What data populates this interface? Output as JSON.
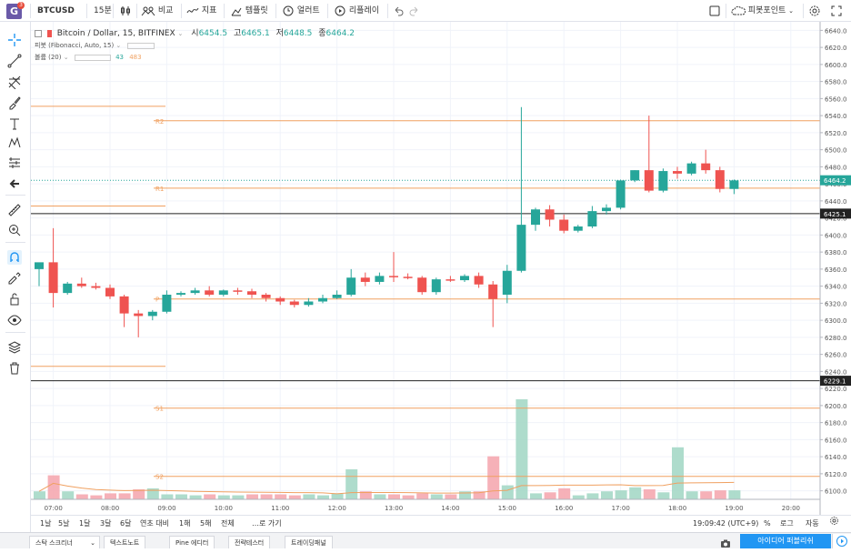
{
  "topbar": {
    "logo_letter": "G",
    "logo_badge": "3",
    "symbol": "BTCUSD",
    "interval": "15분",
    "compare_label": "비교",
    "indicators_label": "지표",
    "templates_label": "템플릿",
    "alert_label": "얼러트",
    "replay_label": "리플레이",
    "pivot_label": "피봇포인트"
  },
  "legend": {
    "title": "Bitcoin / Dollar, 15, BITFINEX",
    "open_label": "시",
    "open": "6454.5",
    "high_label": "고",
    "high": "6465.1",
    "low_label": "저",
    "low": "6448.5",
    "close_label": "종",
    "close": "6464.2",
    "pivot_indicator": "피봇 (Fibonacci, Auto, 15)",
    "volume_indicator": "볼륨 (20)",
    "volume_value_1": "43",
    "volume_value_2": "483"
  },
  "price_axis": {
    "ticks": [
      "6640.0",
      "6620.0",
      "6600.0",
      "6580.0",
      "6560.0",
      "6540.0",
      "6520.0",
      "6500.0",
      "6480.0",
      "6460.0",
      "6440.0",
      "6420.0",
      "6400.0",
      "6380.0",
      "6360.0",
      "6340.0",
      "6320.0",
      "6300.0",
      "6280.0",
      "6260.0",
      "6240.0",
      "6220.0",
      "6200.0",
      "6180.0",
      "6160.0",
      "6140.0",
      "6120.0",
      "6100.0"
    ],
    "current_price": "6464.2",
    "line_price_1": "6425.1",
    "line_price_2": "6229.1"
  },
  "time_axis": {
    "ticks": [
      "07:00",
      "08:00",
      "09:00",
      "10:00",
      "11:00",
      "12:00",
      "13:00",
      "14:00",
      "15:00",
      "16:00",
      "17:00",
      "18:00",
      "19:00",
      "20:00"
    ]
  },
  "pivots": {
    "r2": "R2",
    "r1": "R1",
    "p": "P",
    "s1": "S1",
    "s2": "S2"
  },
  "bottombar": {
    "ranges": [
      "1날",
      "5날",
      "1달",
      "3달",
      "6달",
      "연초 대비",
      "1해",
      "5해",
      "전체"
    ],
    "goto_label": "…로 가기",
    "clock": "19:09:42 (UTC+9)",
    "percent_label": "%",
    "log_label": "로그",
    "auto_label": "자동"
  },
  "panels": {
    "tabs": [
      "스탁 스크리너",
      "텍스트노트",
      "Pine 에디터",
      "전략테스터",
      "트레이딩패널"
    ],
    "publish_label": "아이디어 퍼블리쉬"
  },
  "colors": {
    "up": "#26a69a",
    "down": "#ef5350",
    "pivot_line": "#f0a060",
    "accent": "#2196f3"
  },
  "chart_data": {
    "type": "candlestick",
    "ylim": [
      6090,
      6650
    ],
    "x_start_time": "06:45",
    "bar_minutes": 15,
    "candles": [
      {
        "o": 6360,
        "h": 6365,
        "l": 6340,
        "c": 6368
      },
      {
        "o": 6368,
        "h": 6408,
        "l": 6315,
        "c": 6332
      },
      {
        "o": 6332,
        "h": 6345,
        "l": 6330,
        "c": 6343
      },
      {
        "o": 6343,
        "h": 6350,
        "l": 6338,
        "c": 6340
      },
      {
        "o": 6340,
        "h": 6344,
        "l": 6336,
        "c": 6338
      },
      {
        "o": 6338,
        "h": 6342,
        "l": 6325,
        "c": 6328
      },
      {
        "o": 6328,
        "h": 6330,
        "l": 6292,
        "c": 6308
      },
      {
        "o": 6308,
        "h": 6312,
        "l": 6280,
        "c": 6305
      },
      {
        "o": 6305,
        "h": 6312,
        "l": 6300,
        "c": 6310
      },
      {
        "o": 6310,
        "h": 6335,
        "l": 6308,
        "c": 6330
      },
      {
        "o": 6330,
        "h": 6334,
        "l": 6328,
        "c": 6332
      },
      {
        "o": 6332,
        "h": 6338,
        "l": 6330,
        "c": 6335
      },
      {
        "o": 6335,
        "h": 6340,
        "l": 6328,
        "c": 6330
      },
      {
        "o": 6330,
        "h": 6336,
        "l": 6328,
        "c": 6335
      },
      {
        "o": 6335,
        "h": 6338,
        "l": 6330,
        "c": 6334
      },
      {
        "o": 6334,
        "h": 6337,
        "l": 6326,
        "c": 6330
      },
      {
        "o": 6330,
        "h": 6332,
        "l": 6322,
        "c": 6326
      },
      {
        "o": 6326,
        "h": 6328,
        "l": 6318,
        "c": 6322
      },
      {
        "o": 6322,
        "h": 6324,
        "l": 6315,
        "c": 6318
      },
      {
        "o": 6318,
        "h": 6326,
        "l": 6316,
        "c": 6322
      },
      {
        "o": 6322,
        "h": 6330,
        "l": 6320,
        "c": 6326
      },
      {
        "o": 6326,
        "h": 6335,
        "l": 6325,
        "c": 6330
      },
      {
        "o": 6330,
        "h": 6360,
        "l": 6328,
        "c": 6350
      },
      {
        "o": 6350,
        "h": 6356,
        "l": 6340,
        "c": 6345
      },
      {
        "o": 6345,
        "h": 6356,
        "l": 6342,
        "c": 6352
      },
      {
        "o": 6352,
        "h": 6380,
        "l": 6345,
        "c": 6351
      },
      {
        "o": 6351,
        "h": 6355,
        "l": 6348,
        "c": 6350
      },
      {
        "o": 6350,
        "h": 6352,
        "l": 6330,
        "c": 6333
      },
      {
        "o": 6333,
        "h": 6350,
        "l": 6330,
        "c": 6348
      },
      {
        "o": 6348,
        "h": 6352,
        "l": 6345,
        "c": 6347
      },
      {
        "o": 6347,
        "h": 6354,
        "l": 6345,
        "c": 6352
      },
      {
        "o": 6352,
        "h": 6356,
        "l": 6338,
        "c": 6342
      },
      {
        "o": 6342,
        "h": 6346,
        "l": 6292,
        "c": 6325
      },
      {
        "o": 6330,
        "h": 6365,
        "l": 6320,
        "c": 6358
      },
      {
        "o": 6358,
        "h": 6550,
        "l": 6356,
        "c": 6412
      },
      {
        "o": 6412,
        "h": 6432,
        "l": 6405,
        "c": 6430
      },
      {
        "o": 6430,
        "h": 6435,
        "l": 6410,
        "c": 6418
      },
      {
        "o": 6418,
        "h": 6424,
        "l": 6402,
        "c": 6405
      },
      {
        "o": 6405,
        "h": 6412,
        "l": 6403,
        "c": 6410
      },
      {
        "o": 6410,
        "h": 6434,
        "l": 6408,
        "c": 6428
      },
      {
        "o": 6428,
        "h": 6436,
        "l": 6424,
        "c": 6432
      },
      {
        "o": 6432,
        "h": 6465,
        "l": 6430,
        "c": 6464
      },
      {
        "o": 6464,
        "h": 6476,
        "l": 6462,
        "c": 6476
      },
      {
        "o": 6476,
        "h": 6540,
        "l": 6450,
        "c": 6452
      },
      {
        "o": 6452,
        "h": 6478,
        "l": 6450,
        "c": 6475
      },
      {
        "o": 6475,
        "h": 6480,
        "l": 6466,
        "c": 6472
      },
      {
        "o": 6472,
        "h": 6486,
        "l": 6470,
        "c": 6484
      },
      {
        "o": 6484,
        "h": 6500,
        "l": 6472,
        "c": 6476
      },
      {
        "o": 6476,
        "h": 6480,
        "l": 6450,
        "c": 6454
      },
      {
        "o": 6454,
        "h": 6465,
        "l": 6448,
        "c": 6464
      }
    ],
    "volume": [
      8,
      24,
      8,
      5,
      4,
      6,
      6,
      10,
      11,
      5,
      5,
      4,
      5,
      4,
      4,
      5,
      5,
      5,
      4,
      5,
      4,
      6,
      30,
      8,
      5,
      5,
      4,
      6,
      5,
      5,
      8,
      8,
      43,
      14,
      100,
      6,
      7,
      11,
      4,
      6,
      8,
      9,
      12,
      10,
      7,
      52,
      8,
      8,
      9,
      9
    ],
    "volume_up": [
      true,
      false,
      true,
      false,
      false,
      false,
      false,
      false,
      true,
      true,
      true,
      true,
      false,
      true,
      true,
      false,
      false,
      false,
      false,
      true,
      true,
      true,
      true,
      false,
      true,
      false,
      false,
      false,
      true,
      false,
      true,
      false,
      false,
      true,
      true,
      true,
      false,
      false,
      true,
      true,
      true,
      true,
      true,
      false,
      true,
      true,
      true,
      false,
      false,
      true
    ],
    "horizontal_lines": [
      {
        "label": "R2",
        "price": 6534
      },
      {
        "label": "R1",
        "price": 6455
      },
      {
        "label": "P",
        "price": 6325
      },
      {
        "label": "S1",
        "price": 6197
      },
      {
        "label": "S2",
        "price": 6117
      },
      {
        "label": "",
        "price": 6551
      },
      {
        "label": "",
        "price": 6434
      },
      {
        "label": "",
        "price": 6246
      }
    ],
    "black_lines": [
      6425.1,
      6229.1
    ]
  }
}
